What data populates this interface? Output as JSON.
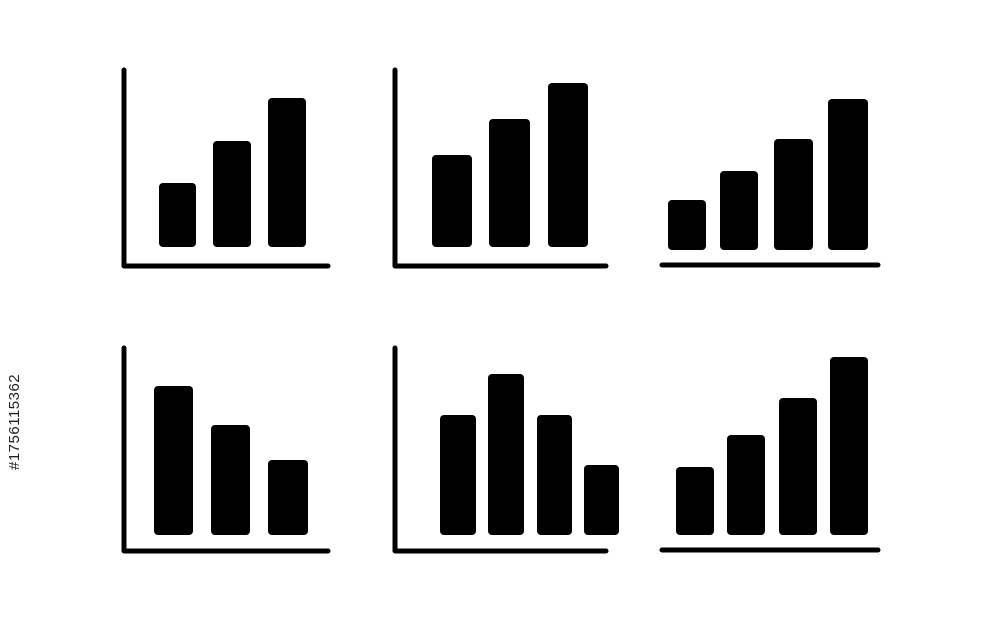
{
  "watermark": {
    "stock_id": "#1756115362"
  },
  "colors": {
    "icon": "#000000",
    "background": "#ffffff"
  },
  "icons": [
    {
      "name": "bar-chart-rising-3-with-axes",
      "bars": 3,
      "trend": "rising"
    },
    {
      "name": "bar-chart-rising-3-with-axes-alt",
      "bars": 3,
      "trend": "rising"
    },
    {
      "name": "bar-chart-rising-4-baseline",
      "bars": 4,
      "trend": "rising"
    },
    {
      "name": "bar-chart-falling-3-with-axes",
      "bars": 3,
      "trend": "falling"
    },
    {
      "name": "bar-chart-peak-4-with-axes",
      "bars": 4,
      "trend": "peak"
    },
    {
      "name": "bar-chart-rising-4-baseline-alt",
      "bars": 4,
      "trend": "rising"
    }
  ]
}
